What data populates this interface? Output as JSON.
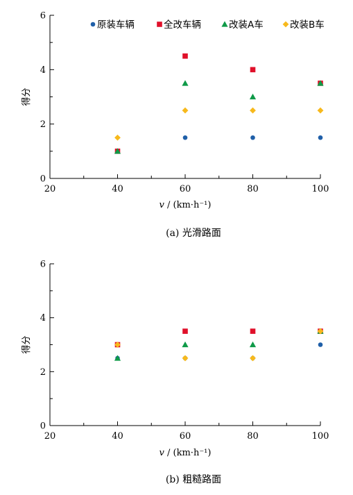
{
  "chart_data": [
    {
      "type": "scatter",
      "caption": "(a)  光滑路面",
      "xlabel_var": "v",
      "xlabel_unit": " / (km·h⁻¹)",
      "ylabel": "得分",
      "xlim": [
        20,
        100
      ],
      "ylim": [
        0,
        6
      ],
      "xticks": [
        20,
        40,
        60,
        80,
        100
      ],
      "yticks": [
        0,
        2,
        4,
        6
      ],
      "legend_position": "top",
      "series": [
        {
          "name": "原装车辆",
          "color": "#1f5fa8",
          "marker": "circle",
          "x": [
            40,
            60,
            80,
            100
          ],
          "y": [
            1.0,
            1.5,
            1.5,
            1.5
          ]
        },
        {
          "name": "全改车辆",
          "color": "#e0102a",
          "marker": "square",
          "x": [
            40,
            60,
            80,
            100
          ],
          "y": [
            1.0,
            4.5,
            4.0,
            3.5
          ]
        },
        {
          "name": "改装A车",
          "color": "#0f9a48",
          "marker": "triangle",
          "x": [
            40,
            60,
            80,
            100
          ],
          "y": [
            1.0,
            3.5,
            3.0,
            3.5
          ]
        },
        {
          "name": "改装B车",
          "color": "#f7b91c",
          "marker": "diamond",
          "x": [
            40,
            60,
            80,
            100
          ],
          "y": [
            1.5,
            2.5,
            2.5,
            2.5
          ]
        }
      ]
    },
    {
      "type": "scatter",
      "caption": "(b)  粗糙路面",
      "xlabel_var": "v",
      "xlabel_unit": " / (km·h⁻¹)",
      "ylabel": "得分",
      "xlim": [
        20,
        100
      ],
      "ylim": [
        0,
        6
      ],
      "xticks": [
        20,
        40,
        60,
        80,
        100
      ],
      "yticks": [
        0,
        2,
        4,
        6
      ],
      "series": [
        {
          "name": "原装车辆",
          "color": "#1f5fa8",
          "marker": "circle",
          "x": [
            40,
            60,
            80,
            100
          ],
          "y": [
            2.5,
            2.5,
            2.5,
            3.0
          ]
        },
        {
          "name": "全改车辆",
          "color": "#e0102a",
          "marker": "square",
          "x": [
            40,
            60,
            80,
            100
          ],
          "y": [
            3.0,
            3.5,
            3.5,
            3.5
          ]
        },
        {
          "name": "改装A车",
          "color": "#0f9a48",
          "marker": "triangle",
          "x": [
            40,
            60,
            80,
            100
          ],
          "y": [
            2.5,
            3.0,
            3.0,
            3.5
          ]
        },
        {
          "name": "改装B车",
          "color": "#f7b91c",
          "marker": "diamond",
          "x": [
            40,
            60,
            80,
            100
          ],
          "y": [
            3.0,
            2.5,
            2.5,
            3.5
          ]
        }
      ]
    }
  ]
}
